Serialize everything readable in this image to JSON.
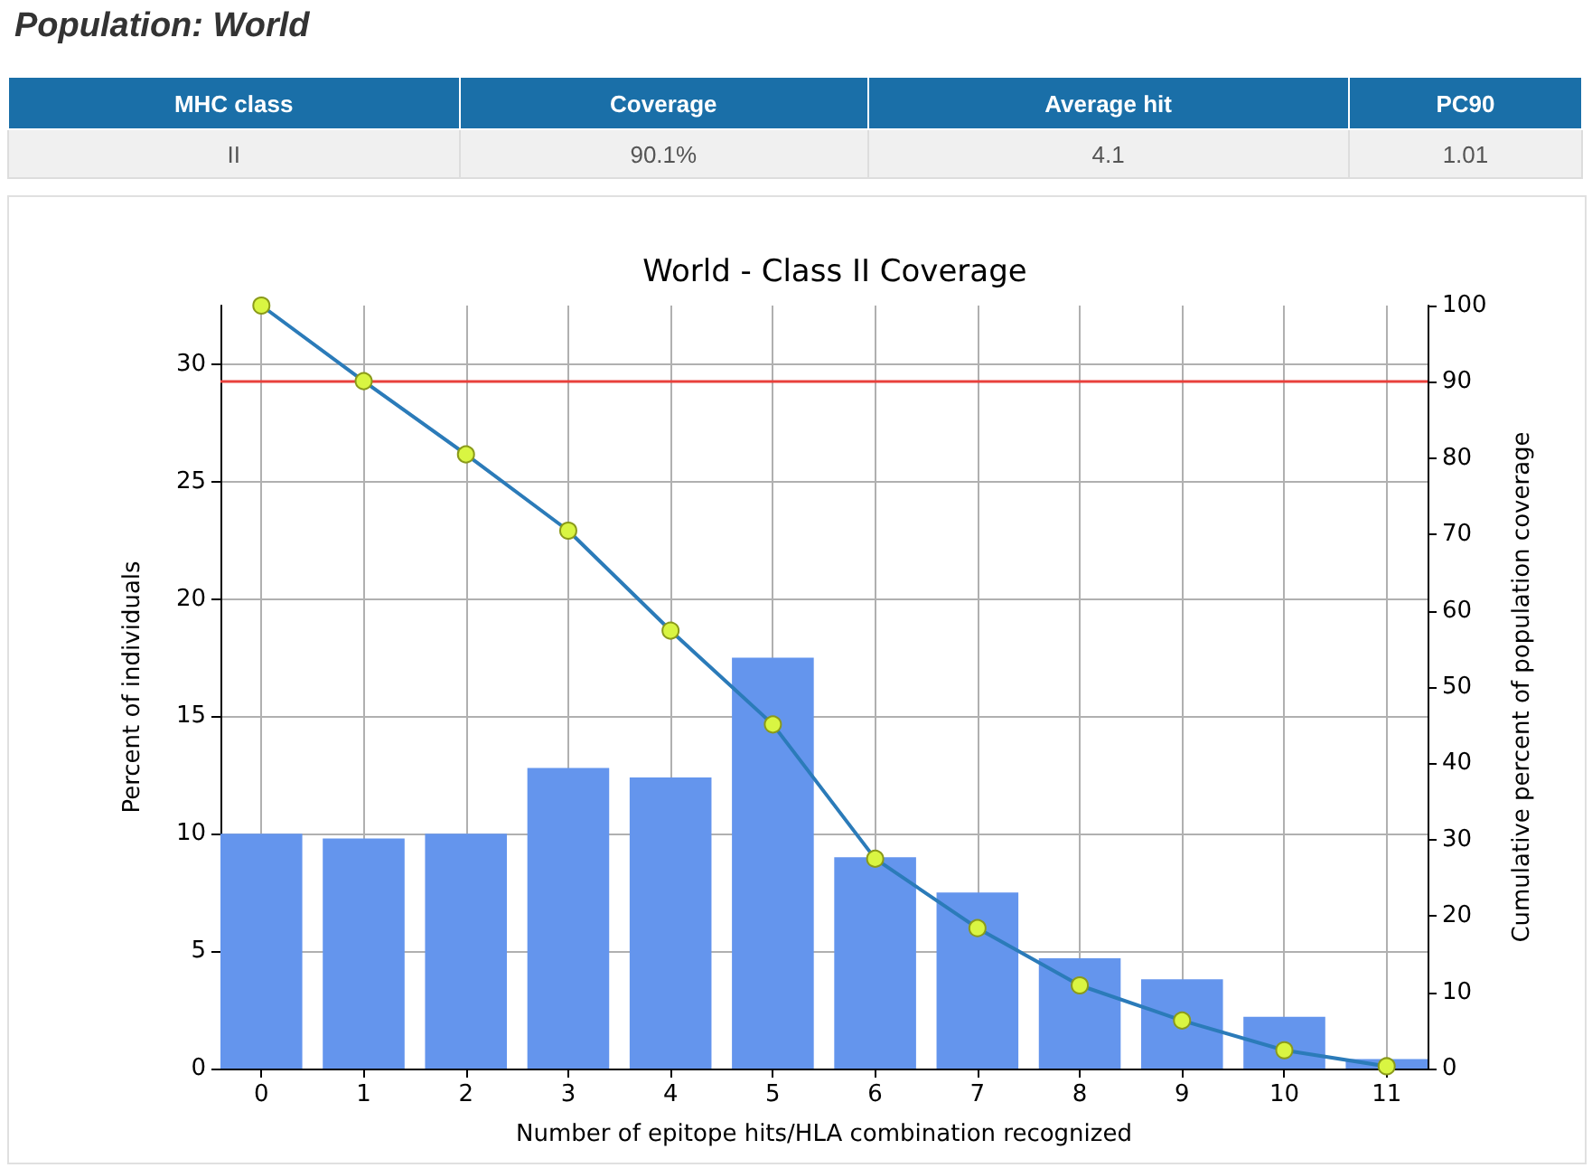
{
  "chart_data": [
    {
      "type": "other",
      "title": "Population: World",
      "annotations": [
        "MHC class",
        "Coverage",
        "Average hit",
        "PC90",
        "II",
        "90.1%",
        "4.1",
        "1.01"
      ]
    },
    {
      "type": "bar",
      "title": "World - Class II Coverage",
      "xlabel": "Number of epitope hits/HLA combination recognized",
      "ylabel": "Percent of individuals",
      "y2label": "Cumulative percent of population coverage",
      "x": [
        0,
        1,
        2,
        3,
        4,
        5,
        6,
        7,
        8,
        9,
        10,
        11
      ],
      "xlim": [
        -0.4,
        11.4
      ],
      "xticks": [
        0,
        1,
        2,
        3,
        4,
        5,
        6,
        7,
        8,
        9,
        10,
        11
      ],
      "ylim": [
        0,
        32.5
      ],
      "yticks": [
        0,
        5,
        10,
        15,
        20,
        25,
        30
      ],
      "y2lim": [
        0,
        100
      ],
      "y2ticks": [
        0,
        10,
        20,
        30,
        40,
        50,
        60,
        70,
        80,
        90,
        100
      ],
      "grid": true,
      "marker": "circle",
      "series": [
        {
          "type": "bar",
          "color": "#6495ed",
          "values": [
            10.0,
            9.8,
            10.0,
            12.8,
            12.4,
            17.5,
            9.0,
            7.5,
            4.7,
            3.8,
            2.2,
            0.4
          ]
        },
        {
          "type": "line",
          "axis": "y2",
          "color": "#2b7bb9",
          "values": [
            100,
            90.1,
            80.5,
            70.5,
            57.4,
            45.1,
            27.5,
            18.4,
            10.9,
            6.3,
            2.4,
            0.3
          ]
        }
      ],
      "ref_lines": [
        {
          "axis": "y2",
          "value": 90,
          "color": "#e8413c"
        }
      ]
    }
  ]
}
